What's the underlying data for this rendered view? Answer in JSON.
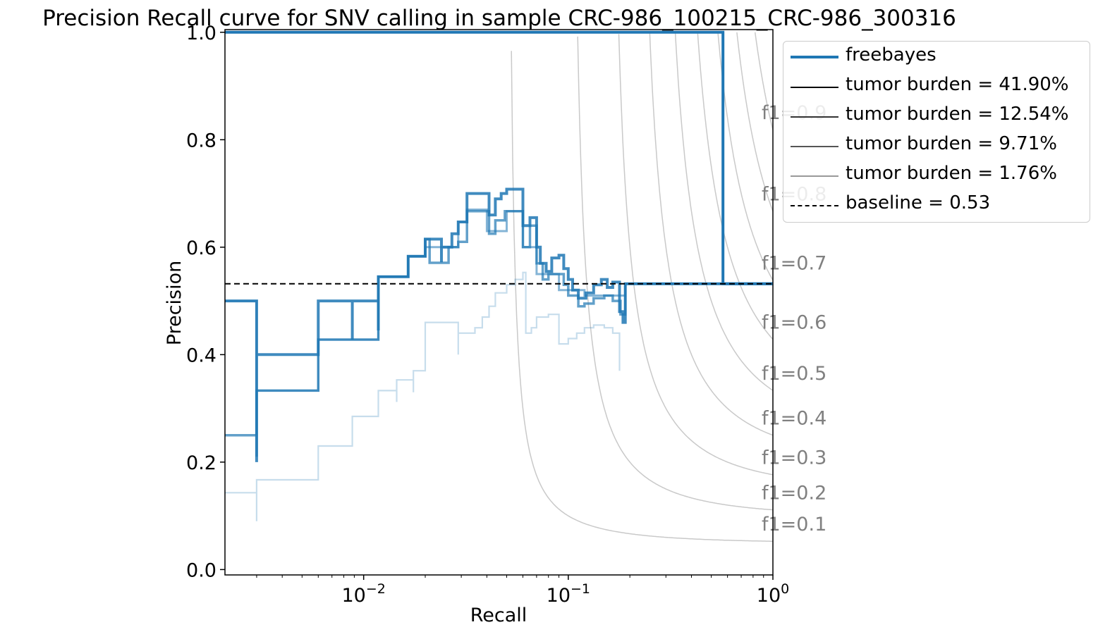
{
  "chart_data": {
    "type": "line",
    "title": "Precision Recall curve for SNV calling in sample CRC-986_100215_CRC-986_300316",
    "xlabel": "Recall",
    "ylabel": "Precision",
    "xscale": "log",
    "xlim": [
      0.0021,
      1.0
    ],
    "ylim": [
      -0.01,
      1.005
    ],
    "x_ticks": [
      {
        "value": 0.01,
        "base": "10",
        "exp": "−2"
      },
      {
        "value": 0.1,
        "base": "10",
        "exp": "−1"
      },
      {
        "value": 1.0,
        "base": "10",
        "exp": "0"
      }
    ],
    "y_ticks": [
      {
        "value": 0.0,
        "label": "0.0"
      },
      {
        "value": 0.2,
        "label": "0.2"
      },
      {
        "value": 0.4,
        "label": "0.4"
      },
      {
        "value": 0.6,
        "label": "0.6"
      },
      {
        "value": 0.8,
        "label": "0.8"
      },
      {
        "value": 1.0,
        "label": "1.0"
      }
    ],
    "grid": false,
    "legend_position": "outside-top-right",
    "f1_isolines": [
      {
        "f1": 0.1,
        "label": "f1=0.1"
      },
      {
        "f1": 0.2,
        "label": "f1=0.2"
      },
      {
        "f1": 0.3,
        "label": "f1=0.3"
      },
      {
        "f1": 0.4,
        "label": "f1=0.4"
      },
      {
        "f1": 0.5,
        "label": "f1=0.5"
      },
      {
        "f1": 0.6,
        "label": "f1=0.6"
      },
      {
        "f1": 0.7,
        "label": "f1=0.7"
      },
      {
        "f1": 0.8,
        "label": "f1=0.8"
      },
      {
        "f1": 0.9,
        "label": "f1=0.9"
      }
    ],
    "baseline": {
      "label": "baseline = 0.53",
      "value": 0.532
    },
    "series": [
      {
        "name": "freebayes",
        "color": "#1f77b4",
        "opacity": 1.0,
        "linewidth": 4,
        "points": [
          [
            0.0021,
            1.0
          ],
          [
            0.57,
            1.0
          ],
          [
            0.57,
            0.532
          ],
          [
            1.0,
            0.532
          ]
        ]
      },
      {
        "name": "tumor burden = 41.90%",
        "color": "#1f77b4",
        "opacity": 0.85,
        "linewidth": 4,
        "points": [
          [
            0.0021,
            0.5
          ],
          [
            0.003,
            0.5
          ],
          [
            0.003,
            0.25
          ],
          [
            0.003,
            0.2
          ],
          [
            0.003,
            0.4
          ],
          [
            0.006,
            0.4
          ],
          [
            0.006,
            0.5
          ],
          [
            0.0088,
            0.5
          ],
          [
            0.0088,
            0.428
          ],
          [
            0.0088,
            0.5
          ],
          [
            0.0118,
            0.5
          ],
          [
            0.0118,
            0.445
          ],
          [
            0.0118,
            0.545
          ],
          [
            0.0165,
            0.545
          ],
          [
            0.0165,
            0.583
          ],
          [
            0.02,
            0.583
          ],
          [
            0.02,
            0.615
          ],
          [
            0.024,
            0.615
          ],
          [
            0.024,
            0.572
          ],
          [
            0.024,
            0.6
          ],
          [
            0.027,
            0.6
          ],
          [
            0.027,
            0.625
          ],
          [
            0.029,
            0.625
          ],
          [
            0.029,
            0.647
          ],
          [
            0.032,
            0.647
          ],
          [
            0.032,
            0.7
          ],
          [
            0.041,
            0.7
          ],
          [
            0.041,
            0.66
          ],
          [
            0.044,
            0.66
          ],
          [
            0.044,
            0.69
          ],
          [
            0.047,
            0.69
          ],
          [
            0.047,
            0.7
          ],
          [
            0.05,
            0.7
          ],
          [
            0.05,
            0.708
          ],
          [
            0.06,
            0.708
          ],
          [
            0.06,
            0.64
          ],
          [
            0.065,
            0.64
          ],
          [
            0.065,
            0.655
          ],
          [
            0.07,
            0.655
          ],
          [
            0.07,
            0.6
          ],
          [
            0.073,
            0.6
          ],
          [
            0.073,
            0.57
          ],
          [
            0.078,
            0.57
          ],
          [
            0.078,
            0.555
          ],
          [
            0.083,
            0.555
          ],
          [
            0.083,
            0.58
          ],
          [
            0.09,
            0.58
          ],
          [
            0.09,
            0.585
          ],
          [
            0.095,
            0.585
          ],
          [
            0.095,
            0.56
          ],
          [
            0.1,
            0.56
          ],
          [
            0.1,
            0.54
          ],
          [
            0.105,
            0.54
          ],
          [
            0.105,
            0.52
          ],
          [
            0.112,
            0.52
          ],
          [
            0.112,
            0.505
          ],
          [
            0.122,
            0.505
          ],
          [
            0.122,
            0.515
          ],
          [
            0.133,
            0.515
          ],
          [
            0.133,
            0.53
          ],
          [
            0.145,
            0.53
          ],
          [
            0.145,
            0.54
          ],
          [
            0.155,
            0.54
          ],
          [
            0.155,
            0.525
          ],
          [
            0.165,
            0.525
          ],
          [
            0.165,
            0.535
          ],
          [
            0.178,
            0.535
          ],
          [
            0.178,
            0.48
          ],
          [
            0.185,
            0.48
          ],
          [
            0.185,
            0.46
          ],
          [
            0.19,
            0.46
          ],
          [
            0.19,
            0.532
          ],
          [
            1.0,
            0.532
          ]
        ]
      },
      {
        "name": "tumor burden = 12.54%",
        "color": "#1f77b4",
        "opacity": 0.7,
        "linewidth": 3.5,
        "points": [
          [
            0.0021,
            0.25
          ],
          [
            0.003,
            0.25
          ],
          [
            0.003,
            0.21
          ],
          [
            0.003,
            0.333
          ],
          [
            0.006,
            0.333
          ],
          [
            0.006,
            0.428
          ],
          [
            0.0118,
            0.428
          ],
          [
            0.0118,
            0.5
          ],
          [
            0.0118,
            0.545
          ],
          [
            0.0165,
            0.545
          ],
          [
            0.0165,
            0.583
          ],
          [
            0.02,
            0.583
          ],
          [
            0.02,
            0.615
          ],
          [
            0.021,
            0.615
          ],
          [
            0.021,
            0.571
          ],
          [
            0.024,
            0.571
          ],
          [
            0.026,
            0.571
          ],
          [
            0.026,
            0.6
          ],
          [
            0.029,
            0.6
          ],
          [
            0.029,
            0.61
          ],
          [
            0.032,
            0.61
          ],
          [
            0.032,
            0.667
          ],
          [
            0.041,
            0.667
          ],
          [
            0.041,
            0.625
          ],
          [
            0.044,
            0.625
          ],
          [
            0.044,
            0.65
          ],
          [
            0.049,
            0.65
          ],
          [
            0.049,
            0.667
          ],
          [
            0.06,
            0.667
          ],
          [
            0.06,
            0.6
          ],
          [
            0.065,
            0.6
          ],
          [
            0.065,
            0.64
          ],
          [
            0.07,
            0.64
          ],
          [
            0.07,
            0.57
          ],
          [
            0.075,
            0.57
          ],
          [
            0.075,
            0.54
          ],
          [
            0.08,
            0.54
          ],
          [
            0.08,
            0.55
          ],
          [
            0.087,
            0.55
          ],
          [
            0.087,
            0.55
          ],
          [
            0.095,
            0.55
          ],
          [
            0.095,
            0.53
          ],
          [
            0.1,
            0.53
          ],
          [
            0.1,
            0.51
          ],
          [
            0.112,
            0.51
          ],
          [
            0.112,
            0.49
          ],
          [
            0.12,
            0.49
          ],
          [
            0.12,
            0.495
          ],
          [
            0.133,
            0.495
          ],
          [
            0.133,
            0.505
          ],
          [
            0.15,
            0.505
          ],
          [
            0.15,
            0.51
          ],
          [
            0.165,
            0.51
          ],
          [
            0.165,
            0.5
          ],
          [
            0.18,
            0.5
          ],
          [
            0.18,
            0.475
          ],
          [
            0.19,
            0.475
          ],
          [
            0.19,
            0.532
          ],
          [
            1.0,
            0.532
          ]
        ]
      },
      {
        "name": "tumor burden = 9.71%",
        "color": "#1f77b4",
        "opacity": 0.55,
        "linewidth": 3,
        "points": [
          [
            0.0021,
            0.5
          ],
          [
            0.003,
            0.5
          ],
          [
            0.003,
            0.25
          ],
          [
            0.003,
            0.333
          ],
          [
            0.006,
            0.333
          ],
          [
            0.006,
            0.428
          ],
          [
            0.0118,
            0.428
          ],
          [
            0.0118,
            0.545
          ],
          [
            0.0165,
            0.545
          ],
          [
            0.0165,
            0.583
          ],
          [
            0.02,
            0.583
          ],
          [
            0.02,
            0.6
          ],
          [
            0.029,
            0.6
          ],
          [
            0.029,
            0.647
          ],
          [
            0.032,
            0.647
          ],
          [
            0.032,
            0.67
          ],
          [
            0.04,
            0.67
          ],
          [
            0.04,
            0.63
          ],
          [
            0.05,
            0.63
          ],
          [
            0.05,
            0.667
          ],
          [
            0.06,
            0.667
          ],
          [
            0.06,
            0.6
          ],
          [
            0.07,
            0.6
          ],
          [
            0.07,
            0.55
          ],
          [
            0.09,
            0.55
          ],
          [
            0.09,
            0.52
          ],
          [
            0.12,
            0.52
          ],
          [
            0.12,
            0.51
          ],
          [
            0.19,
            0.51
          ],
          [
            0.19,
            0.532
          ],
          [
            1.0,
            0.532
          ]
        ]
      },
      {
        "name": "tumor burden = 1.76%",
        "color": "#1f77b4",
        "opacity": 0.25,
        "linewidth": 2.2,
        "points": [
          [
            0.0021,
            0.143
          ],
          [
            0.003,
            0.143
          ],
          [
            0.003,
            0.09
          ],
          [
            0.003,
            0.167
          ],
          [
            0.006,
            0.167
          ],
          [
            0.006,
            0.23
          ],
          [
            0.0088,
            0.23
          ],
          [
            0.0088,
            0.285
          ],
          [
            0.0118,
            0.285
          ],
          [
            0.0118,
            0.333
          ],
          [
            0.0145,
            0.333
          ],
          [
            0.0145,
            0.312
          ],
          [
            0.0145,
            0.353
          ],
          [
            0.0175,
            0.353
          ],
          [
            0.0175,
            0.33
          ],
          [
            0.0175,
            0.37
          ],
          [
            0.02,
            0.37
          ],
          [
            0.02,
            0.46
          ],
          [
            0.029,
            0.46
          ],
          [
            0.029,
            0.4
          ],
          [
            0.029,
            0.44
          ],
          [
            0.035,
            0.44
          ],
          [
            0.035,
            0.45
          ],
          [
            0.038,
            0.45
          ],
          [
            0.038,
            0.47
          ],
          [
            0.041,
            0.47
          ],
          [
            0.041,
            0.49
          ],
          [
            0.044,
            0.49
          ],
          [
            0.044,
            0.515
          ],
          [
            0.05,
            0.515
          ],
          [
            0.05,
            0.53
          ],
          [
            0.055,
            0.53
          ],
          [
            0.055,
            0.54
          ],
          [
            0.06,
            0.54
          ],
          [
            0.06,
            0.553
          ],
          [
            0.062,
            0.553
          ],
          [
            0.062,
            0.44
          ],
          [
            0.066,
            0.44
          ],
          [
            0.066,
            0.45
          ],
          [
            0.07,
            0.45
          ],
          [
            0.07,
            0.47
          ],
          [
            0.08,
            0.47
          ],
          [
            0.08,
            0.475
          ],
          [
            0.09,
            0.475
          ],
          [
            0.09,
            0.42
          ],
          [
            0.1,
            0.42
          ],
          [
            0.1,
            0.43
          ],
          [
            0.11,
            0.43
          ],
          [
            0.11,
            0.44
          ],
          [
            0.12,
            0.44
          ],
          [
            0.12,
            0.45
          ],
          [
            0.133,
            0.45
          ],
          [
            0.133,
            0.455
          ],
          [
            0.15,
            0.455
          ],
          [
            0.15,
            0.45
          ],
          [
            0.165,
            0.45
          ],
          [
            0.165,
            0.44
          ],
          [
            0.178,
            0.44
          ],
          [
            0.178,
            0.37
          ]
        ]
      }
    ]
  }
}
